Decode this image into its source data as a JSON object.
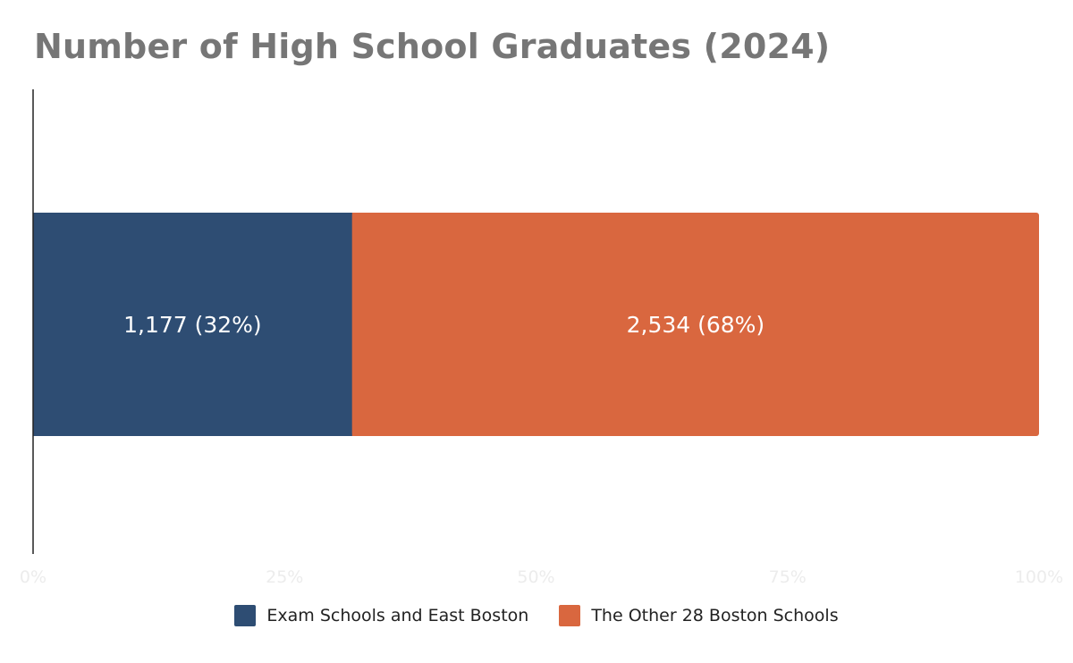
{
  "chart_data": {
    "type": "bar",
    "orientation": "horizontal",
    "stacked": true,
    "normalized": true,
    "title": "Number of High School Graduates (2024)",
    "xlabel": "",
    "ylabel": "",
    "xlim": [
      0,
      100
    ],
    "x_ticks": [
      "0%",
      "25%",
      "50%",
      "75%",
      "100%"
    ],
    "grid": false,
    "legend_position": "bottom",
    "series": [
      {
        "name": "Exam Schools and East Boston",
        "value": 1177,
        "percent": 32,
        "label": "1,177 (32%)",
        "color": "#2e4d73"
      },
      {
        "name": "The Other 28 Boston Schools",
        "value": 2534,
        "percent": 68,
        "label": "2,534 (68%)",
        "color": "#d9673f"
      }
    ]
  }
}
